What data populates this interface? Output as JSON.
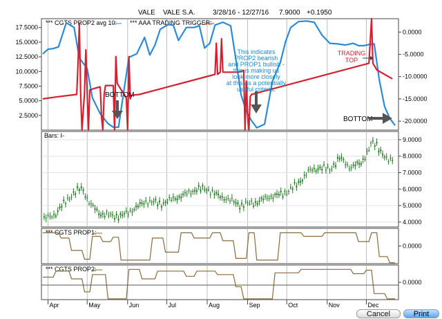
{
  "header": {
    "symbol": "VALE",
    "company": "VALE S.A.",
    "date_range": "3/28/16 - 12/27/16",
    "price": "7.9000",
    "change": "+0.1950"
  },
  "buttons": {
    "cancel": "Cancel",
    "print": "Print"
  },
  "annotations": {
    "bottom_1": "BOTTOM",
    "bottom_2": "BOTTOM",
    "trading_top": [
      "TRADING",
      "TOP"
    ],
    "note": [
      "This indicates",
      "PROP2 bearish",
      "and PROP1 bullish -",
      "this is making us",
      "look more closely",
      "at this as a potentially",
      "useful criteria."
    ]
  },
  "colors": {
    "blue_series": "#2b8ad8",
    "red_series": "#d42030",
    "candles": "#1f7a1f",
    "prop_lines": "#8a6a3a",
    "note_text": "#1a88d0",
    "top_text": "#d42030"
  },
  "chart_data": [
    {
      "type": "line",
      "panel": "indicator-top",
      "legend": [
        "*** CGTS PROP2 avg 10:",
        "*** AAA TRADING TRIGGER:"
      ],
      "left_axis": {
        "ticks": [
          "17.5000",
          "15.0000",
          "12.5000",
          "10.0000",
          "7.5000",
          "5.0000",
          "2.5000"
        ],
        "ylim": [
          0,
          19
        ]
      },
      "right_axis": {
        "ticks": [
          "0.0000",
          "-5.0000",
          "-10.0000",
          "-15.0000",
          "-20.0000"
        ],
        "ylim": [
          -22,
          3
        ]
      },
      "x_days": [
        0,
        270
      ],
      "series": [
        {
          "name": "CGTS PROP2 avg 10",
          "axis": "left",
          "color": "#2b8ad8",
          "x": [
            0,
            4,
            8,
            12,
            18,
            24,
            28,
            34,
            38,
            44,
            50,
            54,
            58,
            62,
            66,
            72,
            78,
            82,
            86,
            90,
            96,
            100,
            104,
            110,
            116,
            120,
            124,
            128,
            132,
            138,
            144,
            148,
            152,
            156,
            160,
            164,
            170,
            176,
            182,
            186,
            190,
            196,
            202,
            208,
            214,
            220,
            226,
            232,
            238,
            242,
            246,
            250,
            254,
            258,
            262,
            266,
            270
          ],
          "y": [
            13.0,
            13.8,
            13.9,
            14.2,
            18.3,
            17.5,
            12.3,
            10.5,
            5.5,
            2.8,
            1.1,
            0.5,
            0.5,
            6.5,
            12.4,
            13.0,
            15.8,
            12.8,
            14.5,
            17.2,
            18.0,
            17.9,
            15.3,
            17.5,
            17.5,
            17.8,
            14.0,
            14.8,
            17.9,
            18.4,
            17.8,
            12.0,
            6.0,
            3.2,
            1.6,
            0.4,
            1.0,
            8.3,
            11.5,
            15.0,
            17.5,
            18.5,
            18.6,
            18.4,
            16.2,
            14.8,
            14.7,
            14.5,
            14.8,
            14.4,
            14.4,
            14.6,
            14.7,
            8.5,
            4.0,
            2.0,
            0.8
          ]
        },
        {
          "name": "AAA TRADING TRIGGER",
          "axis": "right",
          "color": "#d42030",
          "x": [
            0,
            12,
            26,
            27,
            28,
            29,
            30,
            32,
            33,
            34,
            35,
            36,
            40,
            44,
            45,
            46,
            47,
            48,
            54,
            55,
            56,
            57,
            58,
            64,
            65,
            66,
            67,
            68,
            74,
            132,
            133,
            134,
            136,
            137,
            138,
            140,
            150,
            154,
            155,
            156,
            157,
            158,
            159,
            160,
            250,
            251,
            252,
            253,
            254,
            255,
            256,
            262,
            268
          ],
          "y": [
            -15.0,
            -14.5,
            -14.0,
            -7.0,
            2.0,
            -14.0,
            -22.0,
            -13.5,
            -4.0,
            -13.5,
            -22.0,
            -13.0,
            -12.6,
            -12.3,
            -19.0,
            -22.0,
            -14.0,
            -12.0,
            -12.0,
            -22.0,
            -5.5,
            -11.5,
            -12.0,
            -14.8,
            -22.0,
            -5.5,
            -15.0,
            -14.2,
            -14.0,
            -9.5,
            -2.5,
            -9.5,
            -9.0,
            -1.5,
            -9.0,
            -9.0,
            -9.0,
            -8.6,
            -22.0,
            -11.0,
            -19.0,
            -22.0,
            -14.5,
            -14.0,
            -7.0,
            -2.0,
            3.0,
            -7.0,
            -7.5,
            -8.0,
            -8.5,
            -9.5,
            -10.5
          ]
        }
      ]
    },
    {
      "type": "candlestick",
      "panel": "price",
      "legend": "Bars: I-",
      "right_axis": {
        "ticks": [
          "9.0000",
          "8.0000",
          "7.0000",
          "6.0000",
          "5.0000",
          "4.0000"
        ],
        "ylim": [
          3.7,
          9.5
        ]
      },
      "x_days": [
        0,
        270
      ],
      "close_x": [
        0,
        10,
        20,
        30,
        36,
        44,
        52,
        60,
        70,
        80,
        90,
        100,
        110,
        118,
        126,
        134,
        142,
        152,
        156,
        164,
        174,
        184,
        194,
        204,
        212,
        220,
        228,
        236,
        244,
        250,
        252,
        256,
        260,
        264,
        270
      ],
      "close_y": [
        4.15,
        4.5,
        5.5,
        6.1,
        5.1,
        4.5,
        4.4,
        4.35,
        4.8,
        5.3,
        5.1,
        5.4,
        5.7,
        6.0,
        6.0,
        5.6,
        5.4,
        5.0,
        5.1,
        5.2,
        5.55,
        5.7,
        6.2,
        7.1,
        7.3,
        7.2,
        7.9,
        7.3,
        7.6,
        8.4,
        8.8,
        8.7,
        8.2,
        7.7,
        7.9
      ]
    },
    {
      "type": "line",
      "panel": "prop1",
      "legend": "*** CGTS PROP1:",
      "right_axis": {
        "ticks": [
          "0.0000"
        ],
        "ylim": [
          -1,
          1
        ]
      },
      "color": "#8a6a3a",
      "x_days": [
        0,
        270
      ],
      "steps": [
        [
          0,
          0.75
        ],
        [
          12,
          0.75
        ],
        [
          14,
          0.45
        ],
        [
          20,
          0.45
        ],
        [
          22,
          -0.25
        ],
        [
          30,
          -0.25
        ],
        [
          32,
          -0.75
        ],
        [
          36,
          -0.75
        ],
        [
          38,
          0.55
        ],
        [
          44,
          0.55
        ],
        [
          46,
          0.25
        ],
        [
          52,
          0.25
        ],
        [
          54,
          0.5
        ],
        [
          58,
          0.5
        ],
        [
          60,
          -0.8
        ],
        [
          82,
          -0.8
        ],
        [
          84,
          0.45
        ],
        [
          92,
          0.45
        ],
        [
          94,
          -0.35
        ],
        [
          104,
          -0.35
        ],
        [
          106,
          0.75
        ],
        [
          114,
          0.75
        ],
        [
          116,
          0.45
        ],
        [
          128,
          0.45
        ],
        [
          130,
          0.75
        ],
        [
          136,
          0.75
        ],
        [
          138,
          0.3
        ],
        [
          146,
          0.3
        ],
        [
          148,
          -0.7
        ],
        [
          156,
          -0.7
        ],
        [
          158,
          0.75
        ],
        [
          162,
          0.75
        ],
        [
          164,
          -0.8
        ],
        [
          180,
          -0.8
        ],
        [
          182,
          0.75
        ],
        [
          198,
          0.75
        ],
        [
          200,
          0.55
        ],
        [
          214,
          0.55
        ],
        [
          216,
          0.75
        ],
        [
          240,
          0.75
        ],
        [
          242,
          0.25
        ],
        [
          250,
          0.25
        ],
        [
          252,
          0.75
        ],
        [
          256,
          0.75
        ],
        [
          258,
          -0.6
        ],
        [
          264,
          -0.6
        ],
        [
          266,
          -0.95
        ],
        [
          270,
          -0.95
        ]
      ]
    },
    {
      "type": "line",
      "panel": "prop2",
      "legend": "*** CGTS PROP2:",
      "right_axis": {
        "ticks": [
          "0.0000"
        ],
        "ylim": [
          -1,
          1
        ]
      },
      "color": "#8a6a3a",
      "x_days": [
        0,
        270
      ],
      "steps": [
        [
          0,
          0.3
        ],
        [
          8,
          0.3
        ],
        [
          10,
          0.65
        ],
        [
          20,
          0.65
        ],
        [
          22,
          0.2
        ],
        [
          30,
          0.2
        ],
        [
          32,
          -0.55
        ],
        [
          36,
          -0.55
        ],
        [
          38,
          0.45
        ],
        [
          48,
          0.45
        ],
        [
          50,
          -0.95
        ],
        [
          64,
          -0.95
        ],
        [
          66,
          0.75
        ],
        [
          74,
          0.75
        ],
        [
          76,
          0.2
        ],
        [
          86,
          0.2
        ],
        [
          88,
          0.65
        ],
        [
          108,
          0.65
        ],
        [
          110,
          0.35
        ],
        [
          116,
          0.35
        ],
        [
          118,
          0.65
        ],
        [
          132,
          0.65
        ],
        [
          134,
          0.45
        ],
        [
          146,
          0.45
        ],
        [
          148,
          -0.25
        ],
        [
          152,
          -0.25
        ],
        [
          154,
          -0.95
        ],
        [
          176,
          -0.95
        ],
        [
          178,
          0.55
        ],
        [
          196,
          0.55
        ],
        [
          198,
          0.75
        ],
        [
          236,
          0.75
        ],
        [
          238,
          0.5
        ],
        [
          246,
          0.5
        ],
        [
          248,
          0.7
        ],
        [
          252,
          0.7
        ],
        [
          254,
          -0.65
        ],
        [
          262,
          -0.65
        ],
        [
          264,
          -0.95
        ],
        [
          270,
          -0.95
        ]
      ]
    }
  ],
  "x_axis": {
    "labels": [
      "Apr",
      "May",
      "Jun",
      "Jul",
      "Aug",
      "Sep",
      "Oct",
      "Nov",
      "Dec"
    ],
    "days": [
      4,
      34,
      65,
      95,
      126,
      157,
      187,
      218,
      248
    ]
  }
}
